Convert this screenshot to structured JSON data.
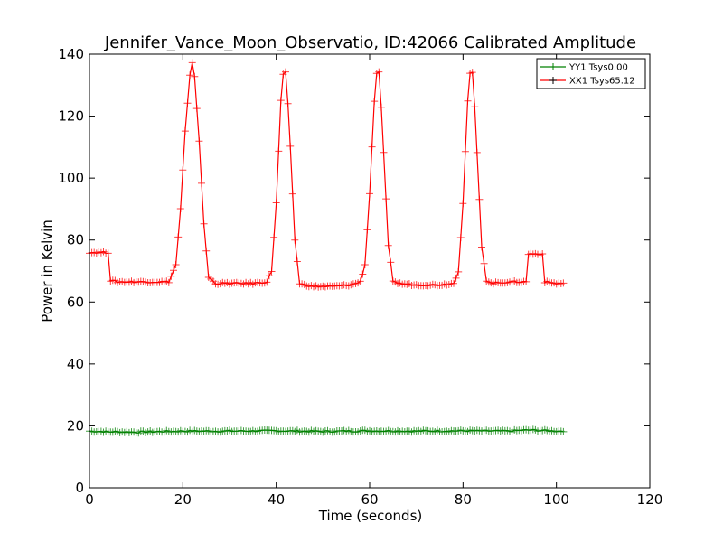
{
  "chart_data": {
    "type": "line",
    "title": "Jennifer_Vance_Moon_Observatio, ID:42066 Calibrated Amplitude",
    "xlabel": "Time (seconds)",
    "ylabel": "Power in Kelvin",
    "xlim": [
      0,
      120
    ],
    "ylim": [
      0,
      140
    ],
    "xticks": [
      0,
      20,
      40,
      60,
      80,
      100,
      120
    ],
    "yticks": [
      0,
      20,
      40,
      60,
      80,
      100,
      120,
      140
    ],
    "grid": false,
    "legend_position": "top-right",
    "series": [
      {
        "name": "YY1 Tsys0.00",
        "color": "#008000",
        "marker": "+",
        "x": [
          0,
          3,
          4,
          5,
          10,
          20,
          30,
          40,
          50,
          60,
          70,
          80,
          90,
          93,
          95,
          97,
          100,
          101.5
        ],
        "y": [
          18.3,
          18.2,
          18.0,
          18.1,
          18.0,
          18.3,
          18.3,
          18.4,
          18.2,
          18.4,
          18.3,
          18.4,
          18.3,
          18.6,
          18.6,
          18.5,
          18.3,
          18.4
        ]
      },
      {
        "name": "XX1 Tsys65.12",
        "color": "#ff0000",
        "marker": "+",
        "x": [
          0,
          2,
          4,
          4.3,
          6,
          10,
          14,
          17,
          18.5,
          19.5,
          20.5,
          21.5,
          22,
          22.5,
          23.5,
          24.5,
          25.5,
          27,
          30,
          35,
          38,
          39,
          40,
          41,
          41.7,
          42.2,
          43,
          44,
          45,
          46,
          48,
          52,
          56,
          58,
          59,
          60,
          61,
          61.7,
          62.2,
          63,
          64,
          65,
          66,
          70,
          75,
          78,
          79,
          80,
          81,
          81.7,
          82.2,
          83,
          84,
          85,
          86,
          90,
          93.5,
          93.8,
          95,
          97,
          97.3,
          100,
          101.5
        ],
        "y": [
          76,
          76,
          76,
          67,
          66.5,
          66.5,
          66.5,
          66.5,
          72,
          90,
          115,
          133,
          137,
          133,
          112,
          85,
          68,
          66,
          66,
          66,
          66.5,
          70,
          92,
          125,
          137,
          132,
          110,
          80,
          66,
          65.5,
          65,
          65,
          65.5,
          66.5,
          72,
          95,
          125,
          137,
          132,
          108,
          78,
          67,
          66,
          65.5,
          65.5,
          66,
          70,
          92,
          125,
          137,
          132,
          108,
          78,
          67,
          66,
          66.5,
          66.5,
          75.5,
          75.5,
          75.5,
          66.5,
          66,
          66
        ]
      }
    ]
  }
}
